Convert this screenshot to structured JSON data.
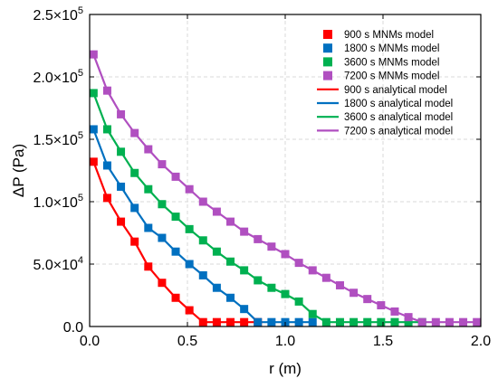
{
  "chart_data": {
    "type": "line",
    "xlabel": "r (m)",
    "ylabel": "ΔP (Pa)",
    "xlim": [
      0,
      2.0
    ],
    "ylim": [
      0,
      250000
    ],
    "x_ticks": [
      0.0,
      0.5,
      1.0,
      1.5,
      2.0
    ],
    "x_tick_labels": [
      "0.0",
      "0.5",
      "1.0",
      "1.5",
      "2.0"
    ],
    "y_ticks": [
      0,
      50000,
      100000,
      150000,
      200000,
      250000
    ],
    "y_tick_labels": [
      "0.0",
      "5.0×10^4",
      "1.0×10^5",
      "1.5×10^5",
      "2.0×10^5",
      "2.5×10^5"
    ],
    "grid": true,
    "legend_position": "top-right",
    "series": [
      {
        "name": "900 s MNMs model",
        "kind": "markers",
        "color": "#ff0000",
        "x": [
          0.02,
          0.09,
          0.16,
          0.23,
          0.3,
          0.37,
          0.44,
          0.51,
          0.58,
          0.65,
          0.72,
          0.79,
          0.86
        ],
        "y": [
          132000,
          103000,
          84000,
          68000,
          48000,
          35000,
          23000,
          13000,
          3500,
          3500,
          3500,
          3500,
          3500
        ]
      },
      {
        "name": "1800 s MNMs model",
        "kind": "markers",
        "color": "#0070c0",
        "x": [
          0.02,
          0.09,
          0.16,
          0.23,
          0.3,
          0.37,
          0.44,
          0.51,
          0.58,
          0.65,
          0.72,
          0.79,
          0.86,
          0.93,
          1.0,
          1.07,
          1.14
        ],
        "y": [
          158000,
          129000,
          112000,
          95000,
          79000,
          71000,
          60000,
          50000,
          41000,
          31000,
          23000,
          14000,
          3500,
          3500,
          3500,
          3500,
          3500
        ]
      },
      {
        "name": "3600 s MNMs model",
        "kind": "markers",
        "color": "#00b050",
        "x": [
          0.02,
          0.09,
          0.16,
          0.23,
          0.3,
          0.37,
          0.44,
          0.51,
          0.58,
          0.65,
          0.72,
          0.79,
          0.86,
          0.93,
          1.0,
          1.07,
          1.14,
          1.21,
          1.28,
          1.35,
          1.42,
          1.49,
          1.56,
          1.63,
          1.7
        ],
        "y": [
          187000,
          158000,
          140000,
          123000,
          110000,
          98000,
          88000,
          78000,
          69000,
          60000,
          52000,
          45000,
          37000,
          31000,
          26000,
          20000,
          10000,
          3500,
          3500,
          3500,
          3500,
          3500,
          3500,
          3500,
          3500
        ]
      },
      {
        "name": "7200 s MNMs model",
        "kind": "markers",
        "color": "#b04fc0",
        "x": [
          0.02,
          0.09,
          0.16,
          0.23,
          0.3,
          0.37,
          0.44,
          0.51,
          0.58,
          0.65,
          0.72,
          0.79,
          0.86,
          0.93,
          1.0,
          1.07,
          1.14,
          1.21,
          1.28,
          1.35,
          1.42,
          1.49,
          1.56,
          1.63,
          1.7,
          1.77,
          1.84,
          1.91,
          1.98
        ],
        "y": [
          218000,
          189000,
          170000,
          155000,
          142000,
          130000,
          120000,
          110000,
          100000,
          92000,
          84000,
          76000,
          70000,
          64000,
          58000,
          51000,
          45000,
          39000,
          33000,
          27000,
          22000,
          17000,
          12000,
          7500,
          3500,
          3500,
          3500,
          3500,
          3500
        ]
      },
      {
        "name": "900 s analytical model",
        "kind": "line",
        "color": "#ff0000",
        "x": [
          0.02,
          0.09,
          0.16,
          0.23,
          0.3,
          0.37,
          0.44,
          0.51,
          0.58,
          0.65,
          0.72,
          0.79,
          0.86
        ],
        "y": [
          132000,
          103000,
          84000,
          68000,
          48000,
          35000,
          23000,
          13000,
          3500,
          3500,
          3500,
          3500,
          3500
        ]
      },
      {
        "name": "1800 s analytical model",
        "kind": "line",
        "color": "#0070c0",
        "x": [
          0.02,
          0.09,
          0.16,
          0.23,
          0.3,
          0.37,
          0.44,
          0.51,
          0.58,
          0.65,
          0.72,
          0.79,
          0.86,
          0.93,
          1.0,
          1.07,
          1.14
        ],
        "y": [
          158000,
          129000,
          112000,
          95000,
          79000,
          71000,
          60000,
          50000,
          41000,
          31000,
          23000,
          14000,
          3500,
          3500,
          3500,
          3500,
          3500
        ]
      },
      {
        "name": "3600 s analytical model",
        "kind": "line",
        "color": "#00b050",
        "x": [
          0.02,
          0.09,
          0.16,
          0.23,
          0.3,
          0.37,
          0.44,
          0.51,
          0.58,
          0.65,
          0.72,
          0.79,
          0.86,
          0.93,
          1.0,
          1.07,
          1.14,
          1.21,
          1.28,
          1.35,
          1.42,
          1.49,
          1.56,
          1.63,
          1.7
        ],
        "y": [
          187000,
          158000,
          140000,
          123000,
          110000,
          98000,
          88000,
          78000,
          69000,
          60000,
          52000,
          45000,
          37000,
          31000,
          26000,
          20000,
          10000,
          3500,
          3500,
          3500,
          3500,
          3500,
          3500,
          3500,
          3500
        ]
      },
      {
        "name": "7200 s analytical model",
        "kind": "line",
        "color": "#b04fc0",
        "x": [
          0.02,
          0.09,
          0.16,
          0.23,
          0.3,
          0.37,
          0.44,
          0.51,
          0.58,
          0.65,
          0.72,
          0.79,
          0.86,
          0.93,
          1.0,
          1.07,
          1.14,
          1.21,
          1.28,
          1.35,
          1.42,
          1.49,
          1.56,
          1.63,
          1.7,
          1.77,
          1.84,
          1.91,
          1.98
        ],
        "y": [
          218000,
          189000,
          170000,
          155000,
          142000,
          130000,
          120000,
          110000,
          100000,
          92000,
          84000,
          76000,
          70000,
          64000,
          58000,
          51000,
          45000,
          39000,
          33000,
          27000,
          22000,
          17000,
          12000,
          7500,
          3500,
          3500,
          3500,
          3500,
          3500
        ]
      }
    ]
  }
}
